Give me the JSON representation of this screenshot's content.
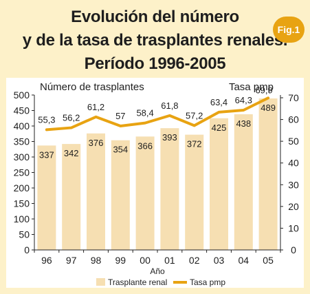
{
  "figure_label": "Fig.1",
  "title_lines": [
    "Evolución del número",
    "y de la tasa de trasplantes renales.",
    "Período 1996-2005"
  ],
  "colors": {
    "background": "#fdf1c9",
    "plot_bg": "#ffffff",
    "bar": "#f6dfb2",
    "line": "#e8a312",
    "badge": "#e8a312",
    "text": "#1e1e1e"
  },
  "chart_data": {
    "type": "bar",
    "categories": [
      "96",
      "97",
      "98",
      "99",
      "00",
      "01",
      "02",
      "03",
      "04",
      "05"
    ],
    "series": [
      {
        "name": "Trasplante renal",
        "type": "bar",
        "axis": "left",
        "values": [
          337,
          342,
          376,
          354,
          366,
          393,
          372,
          425,
          438,
          489
        ],
        "labels": [
          "337",
          "342",
          "376",
          "354",
          "366",
          "393",
          "372",
          "425",
          "438",
          "489"
        ]
      },
      {
        "name": "Tasa pmp",
        "type": "line",
        "axis": "right",
        "values": [
          55.3,
          56.2,
          61.2,
          57,
          58.4,
          61.8,
          57.2,
          63.4,
          64.3,
          69.9
        ],
        "labels": [
          "55,3",
          "56,2",
          "61,2",
          "57",
          "58,4",
          "61,8",
          "57,2",
          "63,4",
          "64,3",
          "69,9"
        ]
      }
    ],
    "xlabel": "Año",
    "ylabel_left": "Número de trasplantes",
    "ylabel_right": "Tasa pmp",
    "ylim_left": [
      0,
      500
    ],
    "ylim_right": [
      0,
      70
    ],
    "yticks_left": [
      0,
      50,
      100,
      150,
      200,
      250,
      300,
      350,
      400,
      450,
      500
    ],
    "yticks_right": [
      0,
      10,
      20,
      30,
      40,
      50,
      60,
      70
    ],
    "legend_position": "bottom",
    "grid": false
  }
}
